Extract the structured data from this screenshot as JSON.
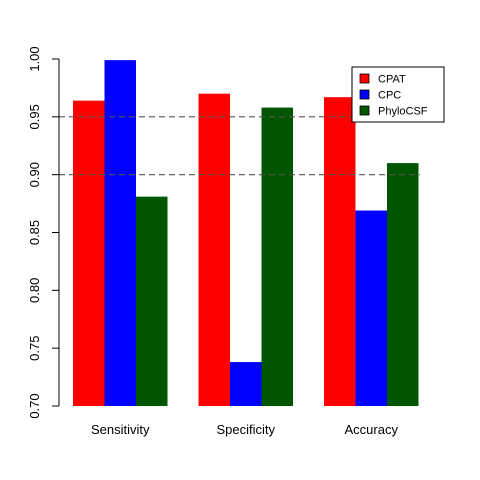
{
  "chart_data": {
    "type": "bar",
    "title": "",
    "xlabel": "",
    "ylabel": "",
    "ylim": [
      0.7,
      1.0
    ],
    "yticks": [
      "0.70",
      "0.75",
      "0.80",
      "0.85",
      "0.90",
      "0.95",
      "1.00"
    ],
    "categories": [
      "Sensitivity",
      "Specificity",
      "Accuracy"
    ],
    "series": [
      {
        "name": "CPAT",
        "color": "#ff0000",
        "values": [
          0.964,
          0.97,
          0.967
        ]
      },
      {
        "name": "CPC",
        "color": "#0000ff",
        "values": [
          0.999,
          0.738,
          0.869
        ]
      },
      {
        "name": "PhyloCSF",
        "color": "#005500",
        "values": [
          0.881,
          0.958,
          0.91
        ]
      }
    ],
    "reference_lines": [
      0.95,
      0.9
    ],
    "legend": "top-right",
    "grid": false
  }
}
